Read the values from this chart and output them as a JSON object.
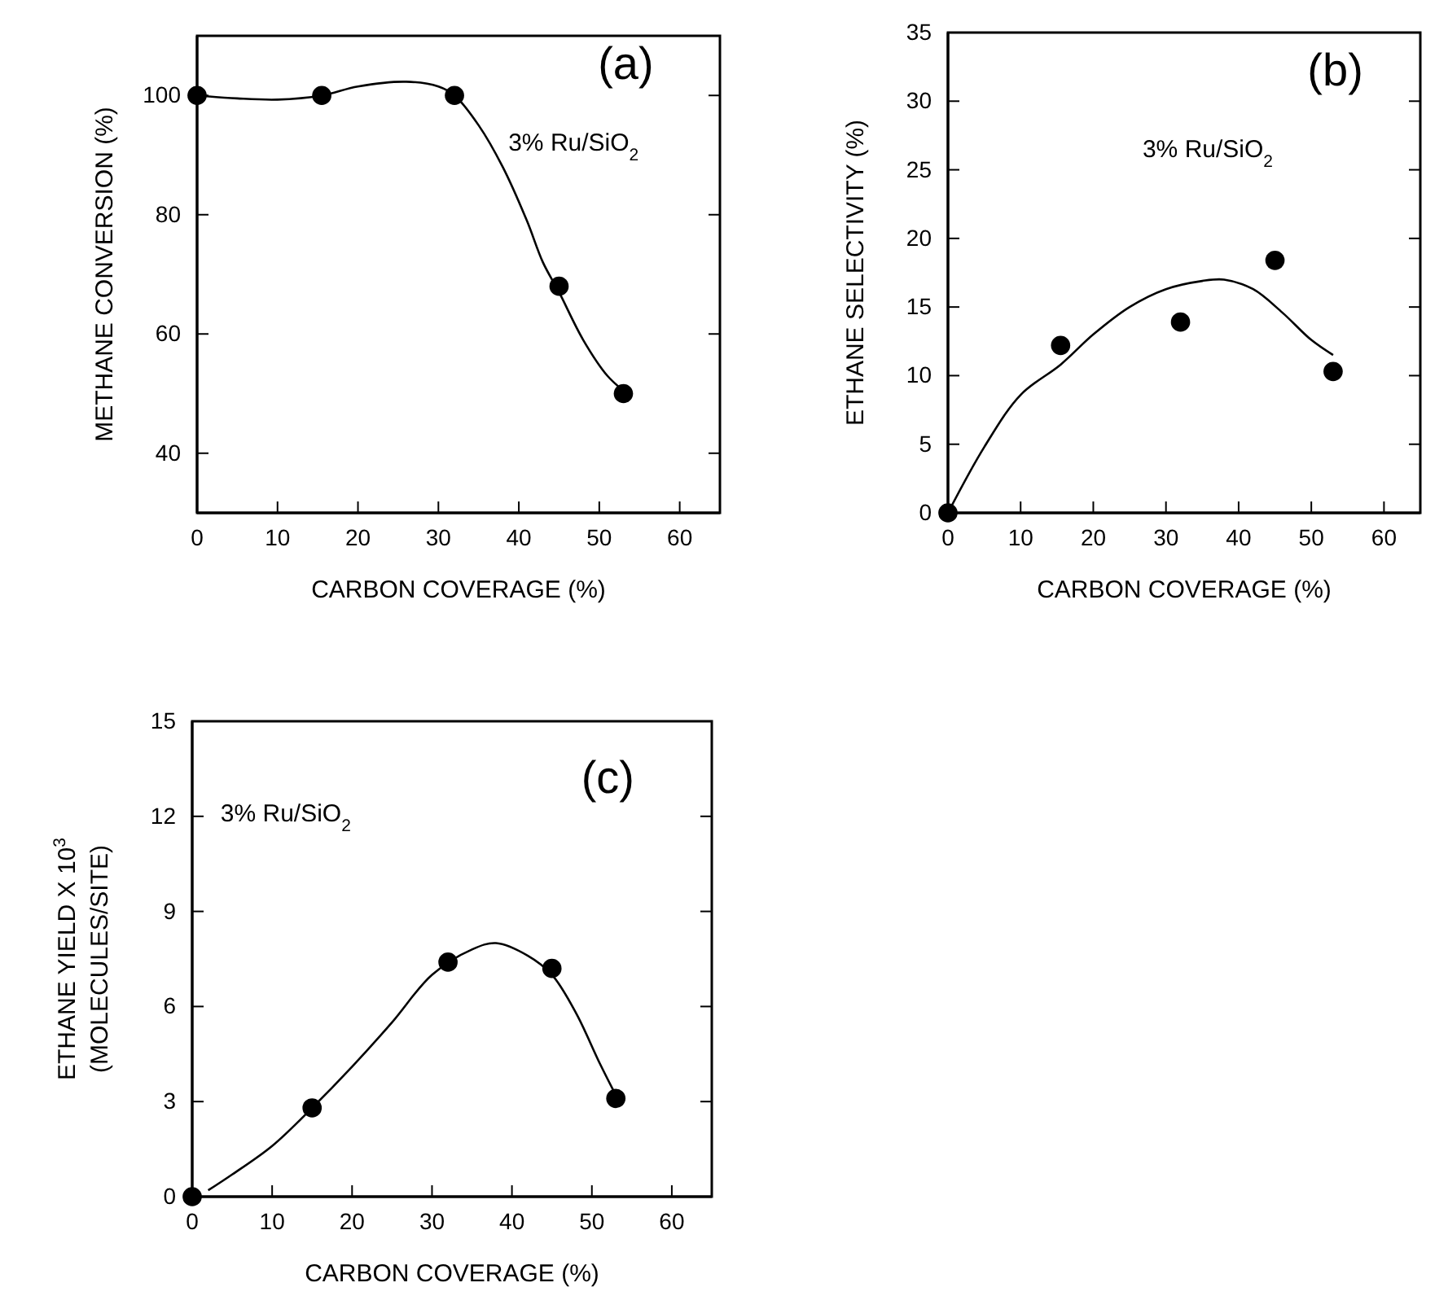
{
  "chart_data": [
    {
      "type": "scatter",
      "xlabel": "CARBON COVERAGE (%)",
      "ylabel": "METHANE CONVERSION (%)",
      "xlim": [
        0,
        65
      ],
      "xticks": [
        0,
        10,
        20,
        30,
        40,
        50,
        60
      ],
      "ylim": [
        30,
        110
      ],
      "yticks": [
        40,
        60,
        80,
        100
      ],
      "annotations": [
        "(a)",
        "3% Ru/SiO$_{2}$"
      ],
      "series": [
        {
          "marker": "circle",
          "color": "#000000",
          "x": [
            0,
            15.5,
            32,
            45,
            53
          ],
          "values": [
            100,
            100,
            100,
            68,
            50
          ]
        },
        {
          "type": "line",
          "marker": "none",
          "color": "#000000",
          "x": [
            0,
            5,
            10,
            15.5,
            20,
            26,
            30,
            32,
            35,
            38,
            41,
            43,
            45,
            48,
            51,
            53
          ],
          "values": [
            100,
            99.5,
            99.3,
            100,
            101.5,
            102.3,
            101.5,
            100,
            95,
            88,
            79,
            72,
            67,
            59,
            53,
            50.5
          ]
        }
      ]
    },
    {
      "type": "scatter",
      "xlabel": "CARBON COVERAGE (%)",
      "ylabel": "ETHANE SELECTIVITY (%)",
      "xlim": [
        0,
        65
      ],
      "xticks": [
        0,
        10,
        20,
        30,
        40,
        50,
        60
      ],
      "ylim": [
        0,
        35
      ],
      "yticks": [
        0,
        5,
        10,
        15,
        20,
        25,
        30,
        35
      ],
      "annotations": [
        "(b)",
        "3% Ru/SiO$_{2}$"
      ],
      "series": [
        {
          "marker": "circle",
          "color": "#000000",
          "x": [
            0,
            15.5,
            32,
            45,
            53
          ],
          "values": [
            0,
            12.2,
            13.9,
            18.4,
            10.3
          ]
        },
        {
          "type": "line",
          "marker": "none",
          "color": "#000000",
          "x": [
            0,
            5,
            10,
            15.5,
            20,
            25,
            30,
            35,
            38,
            42,
            46,
            50,
            53
          ],
          "values": [
            0,
            4.8,
            8.6,
            10.8,
            13,
            15,
            16.3,
            16.9,
            17,
            16.3,
            14.6,
            12.6,
            11.5
          ]
        }
      ]
    },
    {
      "type": "scatter",
      "xlabel": "CARBON COVERAGE (%)",
      "ylabel": "ETHANE YIELD X 10$^{3}$\n(MOLECULES/SITE)",
      "xlim": [
        0,
        65
      ],
      "xticks": [
        0,
        10,
        20,
        30,
        40,
        50,
        60
      ],
      "ylim": [
        0,
        15
      ],
      "yticks": [
        0,
        3,
        6,
        9,
        12,
        15
      ],
      "annotations": [
        "(c)",
        "3% Ru/SiO$_{2}$"
      ],
      "series": [
        {
          "marker": "circle",
          "color": "#000000",
          "x": [
            0,
            15,
            32,
            45,
            53
          ],
          "values": [
            0,
            2.8,
            7.4,
            7.2,
            3.1
          ]
        },
        {
          "type": "line",
          "marker": "none",
          "color": "#000000",
          "x": [
            2,
            5,
            10,
            15,
            20,
            25,
            30,
            35,
            38,
            42,
            45,
            48,
            51,
            53
          ],
          "values": [
            0.2,
            0.7,
            1.6,
            2.8,
            4.1,
            5.5,
            7,
            7.8,
            8,
            7.6,
            7,
            5.8,
            4.2,
            3.2
          ]
        }
      ]
    }
  ]
}
